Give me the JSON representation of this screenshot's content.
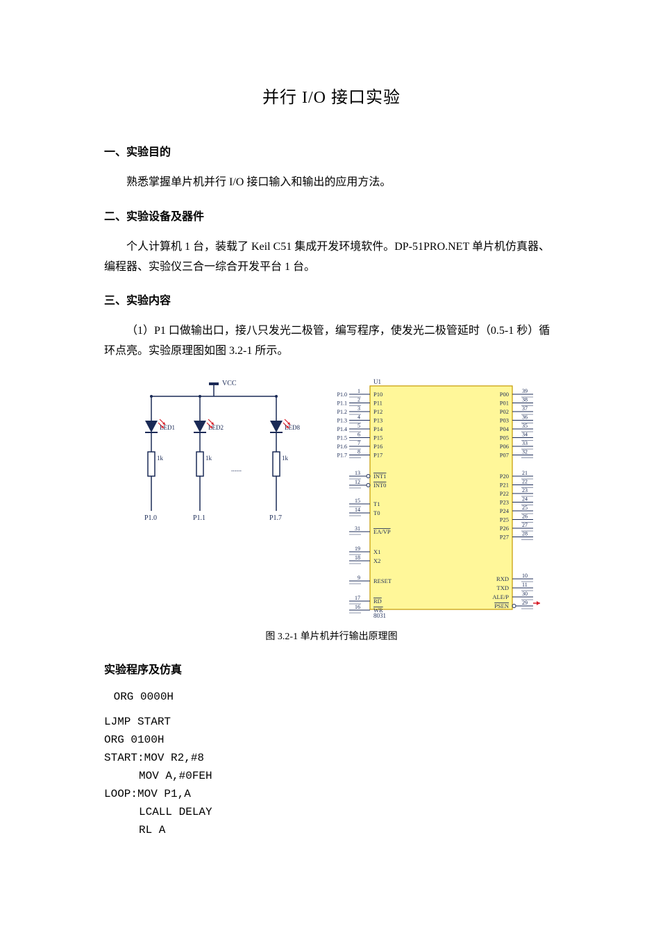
{
  "title": "并行 I/O 接口实验",
  "sections": {
    "s1_heading": "一、实验目的",
    "s1_text": "熟悉掌握单片机并行 I/O 接口输入和输出的应用方法。",
    "s2_heading": "二、实验设备及器件",
    "s2_text": "个人计算机 1 台，装载了 Keil C51 集成开发环境软件。DP-51PRO.NET 单片机仿真器、编程器、实验仪三合一综合开发平台 1 台。",
    "s3_heading": "三、实验内容",
    "s3_text": "（1）P1 口做输出口，接八只发光二极管，编写程序，使发光二极管延时（0.5-1 秒）循环点亮。实验原理图如图 3.2-1 所示。"
  },
  "diagram": {
    "vcc_label": "VCC",
    "leds": [
      "LED1",
      "LED2",
      "LED8"
    ],
    "resistors": [
      "1k",
      "1k",
      "1k"
    ],
    "dots": "......",
    "p_outputs": [
      "P1.0",
      "P1.1",
      "P1.7"
    ],
    "chip": {
      "ref": "U1",
      "name": "8031",
      "fill": "#fff799",
      "stroke": "#c49a00",
      "left_pins": [
        {
          "name": "P10",
          "num": "1",
          "ext": "P1.0"
        },
        {
          "name": "P11",
          "num": "2",
          "ext": "P1.1"
        },
        {
          "name": "P12",
          "num": "3",
          "ext": "P1.2"
        },
        {
          "name": "P13",
          "num": "4",
          "ext": "P1.3"
        },
        {
          "name": "P14",
          "num": "5",
          "ext": "P1.4"
        },
        {
          "name": "P15",
          "num": "6",
          "ext": "P1.5"
        },
        {
          "name": "P16",
          "num": "7",
          "ext": "P1.6"
        },
        {
          "name": "P17",
          "num": "8",
          "ext": "P1.7"
        }
      ],
      "left_pins2": [
        {
          "name": "INT1",
          "num": "13",
          "overline": true,
          "bubble": true
        },
        {
          "name": "INT0",
          "num": "12",
          "overline": true,
          "bubble": true
        }
      ],
      "left_pins3": [
        {
          "name": "T1",
          "num": "15"
        },
        {
          "name": "T0",
          "num": "14"
        }
      ],
      "left_pins4": [
        {
          "name": "EA/VP",
          "num": "31",
          "overline": true
        }
      ],
      "left_pins5": [
        {
          "name": "X1",
          "num": "19"
        },
        {
          "name": "X2",
          "num": "18"
        }
      ],
      "left_pins6": [
        {
          "name": "RESET",
          "num": "9"
        }
      ],
      "left_pins7": [
        {
          "name": "RD",
          "num": "17",
          "overline": true
        },
        {
          "name": "WR",
          "num": "16",
          "overline": true
        }
      ],
      "right_pins": [
        {
          "name": "P00",
          "num": "39"
        },
        {
          "name": "P01",
          "num": "38"
        },
        {
          "name": "P02",
          "num": "37"
        },
        {
          "name": "P03",
          "num": "36"
        },
        {
          "name": "P04",
          "num": "35"
        },
        {
          "name": "P05",
          "num": "34"
        },
        {
          "name": "P06",
          "num": "33"
        },
        {
          "name": "P07",
          "num": "32"
        }
      ],
      "right_pins2": [
        {
          "name": "P20",
          "num": "21"
        },
        {
          "name": "P21",
          "num": "22"
        },
        {
          "name": "P22",
          "num": "23"
        },
        {
          "name": "P23",
          "num": "24"
        },
        {
          "name": "P24",
          "num": "25"
        },
        {
          "name": "P25",
          "num": "26"
        },
        {
          "name": "P26",
          "num": "27"
        },
        {
          "name": "P27",
          "num": "28"
        }
      ],
      "right_pins3": [
        {
          "name": "RXD",
          "num": "10"
        },
        {
          "name": "TXD",
          "num": "11"
        },
        {
          "name": "ALE/P",
          "num": "30"
        },
        {
          "name": "PSEN",
          "num": "29",
          "overline": true,
          "bubble": true
        }
      ]
    },
    "colors": {
      "wire": "#1a2a56",
      "diode": "#1a2a56",
      "arrow": "#d8202a",
      "text": "#1a2a56",
      "red": "#d8202a"
    }
  },
  "caption": "图 3.2-1 单片机并行输出原理图",
  "programHeading": "实验程序及仿真",
  "code": [
    {
      "t": " ORG 0000H",
      "cls": "code-indent-1"
    },
    {
      "t": "LJMP START",
      "cls": ""
    },
    {
      "t": "ORG 0100H",
      "cls": ""
    },
    {
      "t": "START:MOV R2,#8",
      "cls": ""
    },
    {
      "t": "MOV A,#0FEH",
      "cls": "code-indent-2"
    },
    {
      "t": "LOOP:MOV P1,A",
      "cls": ""
    },
    {
      "t": "LCALL DELAY",
      "cls": "code-indent-2"
    },
    {
      "t": "RL A",
      "cls": "code-indent-2"
    }
  ]
}
